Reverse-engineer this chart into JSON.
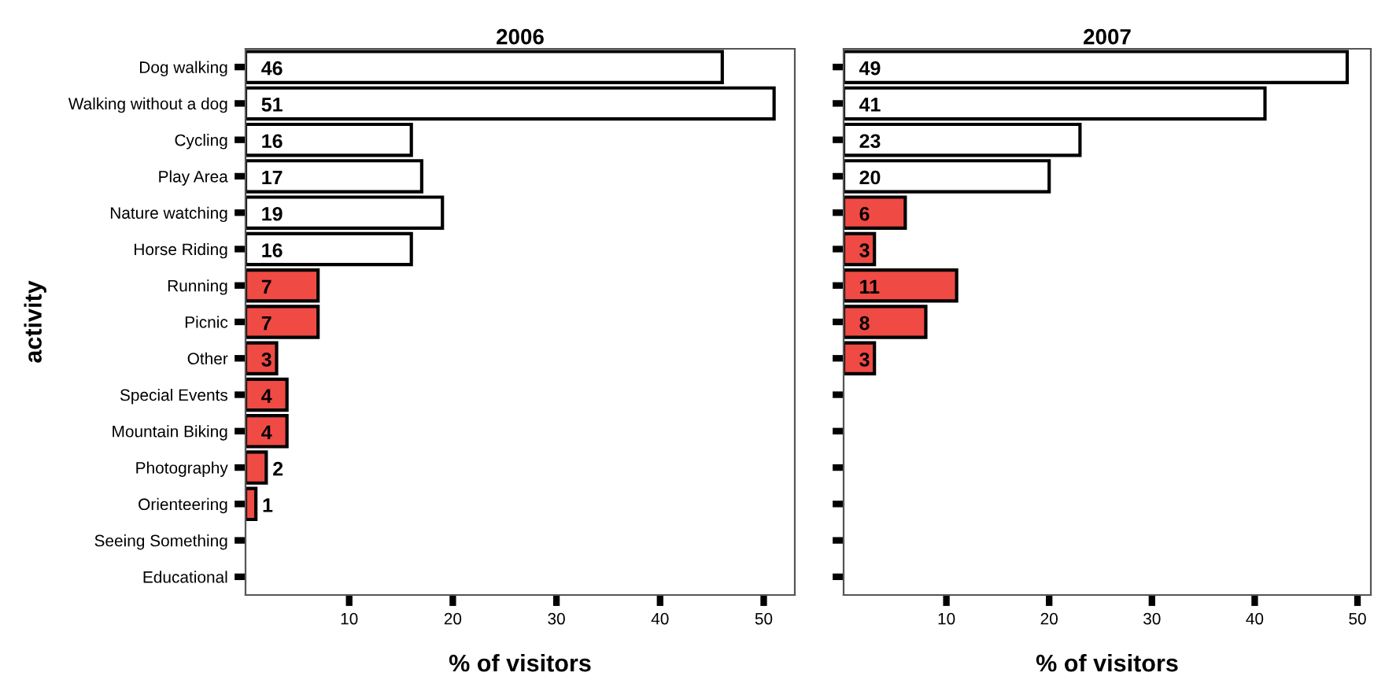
{
  "chart_data": [
    {
      "type": "bar",
      "orientation": "horizontal",
      "title": "2006",
      "xlabel": "% of visitors",
      "ylabel": "activity",
      "categories": [
        "Dog walking",
        "Walking without a dog",
        "Cycling",
        "Play Area",
        "Nature watching",
        "Horse Riding",
        "Running",
        "Picnic",
        "Other",
        "Special Events",
        "Mountain Biking",
        "Photography",
        "Orienteering",
        "Seeing Something",
        "Educational"
      ],
      "values": [
        46,
        51,
        16,
        17,
        19,
        16,
        7,
        7,
        3,
        4,
        4,
        2,
        1,
        null,
        null
      ],
      "colors": [
        "#ffffff",
        "#ffffff",
        "#ffffff",
        "#ffffff",
        "#ffffff",
        "#ffffff",
        "#f04a44",
        "#f04a44",
        "#f04a44",
        "#f04a44",
        "#f04a44",
        "#f04a44",
        "#f04a44",
        null,
        null
      ],
      "xlim": [
        0,
        53
      ],
      "xticks": [
        10,
        20,
        30,
        40,
        50
      ],
      "data_labels": true,
      "grid": false,
      "legend": false
    },
    {
      "type": "bar",
      "orientation": "horizontal",
      "title": "2007",
      "xlabel": "% of visitors",
      "categories": [
        null,
        null,
        null,
        null,
        null,
        null,
        null,
        null,
        null,
        null,
        null,
        null,
        null,
        null,
        null
      ],
      "values": [
        49,
        41,
        23,
        20,
        6,
        3,
        11,
        8,
        3,
        null,
        null,
        null,
        null,
        null,
        null
      ],
      "colors": [
        "#ffffff",
        "#ffffff",
        "#ffffff",
        "#ffffff",
        "#f04a44",
        "#f04a44",
        "#f04a44",
        "#f04a44",
        "#f04a44",
        null,
        null,
        null,
        null,
        null,
        null
      ],
      "xlim": [
        0,
        51.3
      ],
      "xticks": [
        10,
        20,
        30,
        40,
        50
      ],
      "tick_labels": "x",
      "data_labels": true,
      "grid": false,
      "legend": false
    }
  ]
}
